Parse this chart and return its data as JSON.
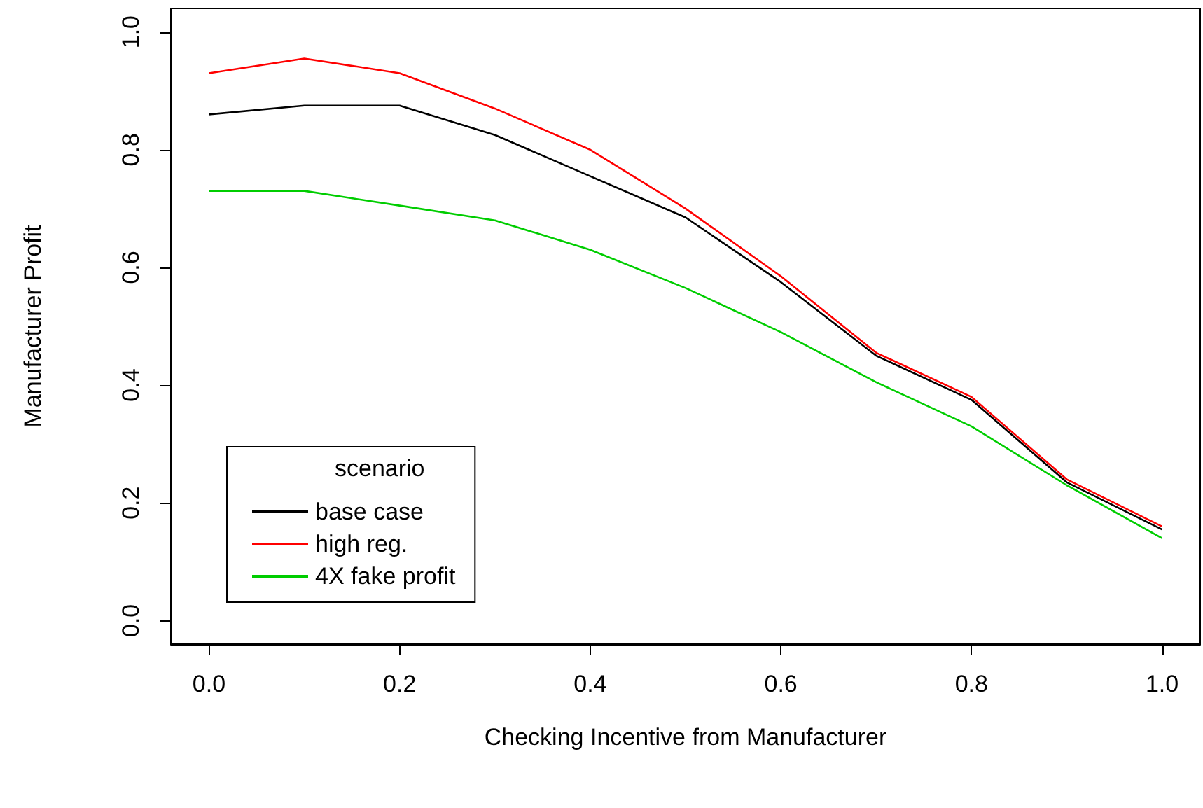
{
  "chart_data": {
    "type": "line",
    "xlabel": "Checking Incentive from Manufacturer",
    "ylabel": "Manufacturer Profit",
    "legend_title": "scenario",
    "legend": "bottom left",
    "marker": "none",
    "line_style": "solid",
    "grid": false,
    "x": [
      0,
      0.1,
      0.2,
      0.3,
      0.4,
      0.5,
      0.6,
      0.7,
      0.8,
      0.9,
      1.0
    ],
    "xlim": [
      -0.04,
      1.04
    ],
    "xticks": [
      {
        "value": 0,
        "label": "0.0"
      },
      {
        "value": 0.2,
        "label": "0.2"
      },
      {
        "value": 0.4,
        "label": "0.4"
      },
      {
        "value": 0.6,
        "label": "0.6"
      },
      {
        "value": 0.8,
        "label": "0.8"
      },
      {
        "value": 1,
        "label": "1.0"
      }
    ],
    "ylim": [
      -0.04,
      1.04
    ],
    "yticks": [
      {
        "value": 0,
        "label": "0.0"
      },
      {
        "value": 0.2,
        "label": "0.2"
      },
      {
        "value": 0.4,
        "label": "0.4"
      },
      {
        "value": 0.6,
        "label": "0.6"
      },
      {
        "value": 0.8,
        "label": "0.8"
      },
      {
        "value": 1,
        "label": "1.0"
      }
    ],
    "series": [
      {
        "name": "base case",
        "color": "#000000",
        "values": [
          0.86,
          0.875,
          0.875,
          0.825,
          0.755,
          0.685,
          0.575,
          0.45,
          0.375,
          0.235,
          0.155
        ]
      },
      {
        "name": "high reg.",
        "color": "#ff0000",
        "values": [
          0.93,
          0.955,
          0.93,
          0.87,
          0.8,
          0.7,
          0.585,
          0.455,
          0.38,
          0.24,
          0.16
        ]
      },
      {
        "name": "4X fake profit",
        "color": "#00cd00",
        "values": [
          0.73,
          0.73,
          0.705,
          0.68,
          0.63,
          0.565,
          0.49,
          0.405,
          0.33,
          0.23,
          0.14
        ]
      }
    ]
  }
}
